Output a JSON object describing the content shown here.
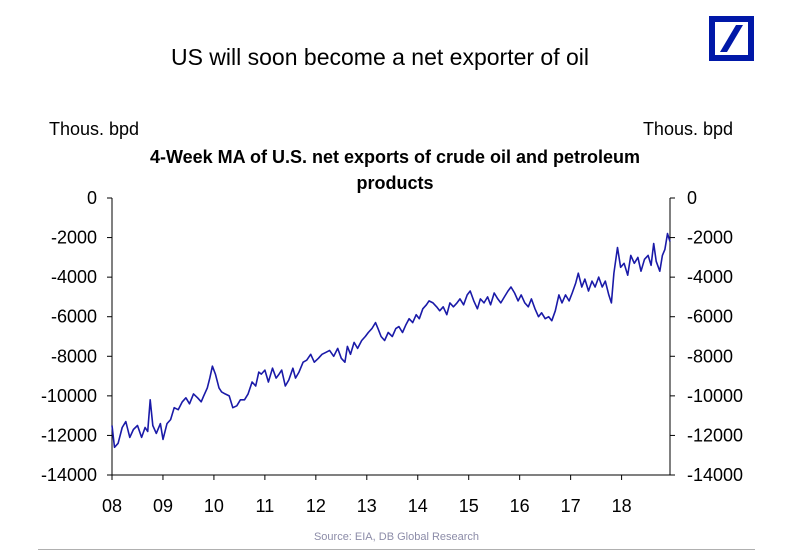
{
  "slide": {
    "title": "US will soon become a net exporter of oil",
    "source": "Source: EIA, DB Global Research"
  },
  "logo": {
    "name": "deutsche-bank-logo",
    "color": "#0018a8"
  },
  "chart_data": {
    "type": "line",
    "title": "4-Week MA of  U.S. net exports of crude oil and petroleum products",
    "title_line1": "4-Week MA of  U.S. net exports of crude oil and petroleum",
    "title_line2": "products",
    "ylabel_left": "Thous. bpd",
    "ylabel_right": "Thous. bpd",
    "ylim": [
      -14000,
      0
    ],
    "yticks": [
      0,
      -2000,
      -4000,
      -6000,
      -8000,
      -10000,
      -12000,
      -14000
    ],
    "x_range": [
      2008,
      2018.95
    ],
    "xticks": [
      {
        "label": "08",
        "value": 2008
      },
      {
        "label": "09",
        "value": 2009
      },
      {
        "label": "10",
        "value": 2010
      },
      {
        "label": "11",
        "value": 2011
      },
      {
        "label": "12",
        "value": 2012
      },
      {
        "label": "13",
        "value": 2013
      },
      {
        "label": "14",
        "value": 2014
      },
      {
        "label": "15",
        "value": 2015
      },
      {
        "label": "16",
        "value": 2016
      },
      {
        "label": "17",
        "value": 2017
      },
      {
        "label": "18",
        "value": 2018
      }
    ],
    "line_color": "#1a1aa8",
    "series": [
      {
        "name": "4-Week MA of U.S. net exports",
        "points": [
          [
            2008.0,
            -11500
          ],
          [
            2008.05,
            -12600
          ],
          [
            2008.12,
            -12400
          ],
          [
            2008.2,
            -11600
          ],
          [
            2008.27,
            -11300
          ],
          [
            2008.35,
            -12100
          ],
          [
            2008.42,
            -11700
          ],
          [
            2008.5,
            -11500
          ],
          [
            2008.58,
            -12100
          ],
          [
            2008.65,
            -11600
          ],
          [
            2008.7,
            -11800
          ],
          [
            2008.75,
            -10200
          ],
          [
            2008.8,
            -11500
          ],
          [
            2008.87,
            -11900
          ],
          [
            2008.95,
            -11400
          ],
          [
            2009.0,
            -12200
          ],
          [
            2009.08,
            -11400
          ],
          [
            2009.15,
            -11200
          ],
          [
            2009.22,
            -10600
          ],
          [
            2009.3,
            -10700
          ],
          [
            2009.38,
            -10300
          ],
          [
            2009.45,
            -10100
          ],
          [
            2009.52,
            -10400
          ],
          [
            2009.6,
            -9900
          ],
          [
            2009.68,
            -10100
          ],
          [
            2009.75,
            -10300
          ],
          [
            2009.8,
            -10000
          ],
          [
            2009.87,
            -9600
          ],
          [
            2009.92,
            -9100
          ],
          [
            2009.97,
            -8500
          ],
          [
            2010.03,
            -8900
          ],
          [
            2010.1,
            -9600
          ],
          [
            2010.15,
            -9800
          ],
          [
            2010.22,
            -9900
          ],
          [
            2010.3,
            -10000
          ],
          [
            2010.37,
            -10600
          ],
          [
            2010.45,
            -10500
          ],
          [
            2010.52,
            -10200
          ],
          [
            2010.6,
            -10200
          ],
          [
            2010.67,
            -9900
          ],
          [
            2010.75,
            -9300
          ],
          [
            2010.82,
            -9500
          ],
          [
            2010.88,
            -8800
          ],
          [
            2010.93,
            -8900
          ],
          [
            2011.0,
            -8700
          ],
          [
            2011.07,
            -9300
          ],
          [
            2011.15,
            -8600
          ],
          [
            2011.22,
            -9100
          ],
          [
            2011.28,
            -8900
          ],
          [
            2011.33,
            -8700
          ],
          [
            2011.4,
            -9500
          ],
          [
            2011.47,
            -9200
          ],
          [
            2011.55,
            -8600
          ],
          [
            2011.6,
            -9100
          ],
          [
            2011.67,
            -8800
          ],
          [
            2011.75,
            -8300
          ],
          [
            2011.82,
            -8200
          ],
          [
            2011.9,
            -7900
          ],
          [
            2011.97,
            -8300
          ],
          [
            2012.05,
            -8100
          ],
          [
            2012.12,
            -7900
          ],
          [
            2012.2,
            -7800
          ],
          [
            2012.27,
            -7700
          ],
          [
            2012.35,
            -8000
          ],
          [
            2012.43,
            -7600
          ],
          [
            2012.5,
            -8100
          ],
          [
            2012.57,
            -8300
          ],
          [
            2012.62,
            -7500
          ],
          [
            2012.68,
            -7900
          ],
          [
            2012.75,
            -7300
          ],
          [
            2012.82,
            -7600
          ],
          [
            2012.9,
            -7200
          ],
          [
            2012.97,
            -7000
          ],
          [
            2013.03,
            -6800
          ],
          [
            2013.1,
            -6600
          ],
          [
            2013.17,
            -6300
          ],
          [
            2013.22,
            -6600
          ],
          [
            2013.28,
            -7000
          ],
          [
            2013.35,
            -7200
          ],
          [
            2013.42,
            -6800
          ],
          [
            2013.5,
            -7000
          ],
          [
            2013.57,
            -6600
          ],
          [
            2013.63,
            -6500
          ],
          [
            2013.7,
            -6800
          ],
          [
            2013.77,
            -6400
          ],
          [
            2013.83,
            -6100
          ],
          [
            2013.9,
            -6300
          ],
          [
            2013.97,
            -5900
          ],
          [
            2014.03,
            -6100
          ],
          [
            2014.1,
            -5600
          ],
          [
            2014.17,
            -5400
          ],
          [
            2014.22,
            -5200
          ],
          [
            2014.3,
            -5300
          ],
          [
            2014.37,
            -5500
          ],
          [
            2014.43,
            -5700
          ],
          [
            2014.5,
            -5500
          ],
          [
            2014.57,
            -5900
          ],
          [
            2014.63,
            -5300
          ],
          [
            2014.7,
            -5500
          ],
          [
            2014.77,
            -5300
          ],
          [
            2014.83,
            -5100
          ],
          [
            2014.9,
            -5400
          ],
          [
            2014.97,
            -4900
          ],
          [
            2015.03,
            -4700
          ],
          [
            2015.1,
            -5200
          ],
          [
            2015.17,
            -5600
          ],
          [
            2015.23,
            -5100
          ],
          [
            2015.3,
            -5300
          ],
          [
            2015.37,
            -5000
          ],
          [
            2015.43,
            -5400
          ],
          [
            2015.5,
            -4800
          ],
          [
            2015.57,
            -5100
          ],
          [
            2015.63,
            -5300
          ],
          [
            2015.7,
            -5000
          ],
          [
            2015.77,
            -4700
          ],
          [
            2015.83,
            -4500
          ],
          [
            2015.9,
            -4800
          ],
          [
            2015.97,
            -5200
          ],
          [
            2016.03,
            -4900
          ],
          [
            2016.1,
            -5300
          ],
          [
            2016.17,
            -5500
          ],
          [
            2016.23,
            -5100
          ],
          [
            2016.3,
            -5600
          ],
          [
            2016.37,
            -6000
          ],
          [
            2016.43,
            -5800
          ],
          [
            2016.5,
            -6100
          ],
          [
            2016.57,
            -6000
          ],
          [
            2016.63,
            -6200
          ],
          [
            2016.7,
            -5700
          ],
          [
            2016.77,
            -4900
          ],
          [
            2016.83,
            -5300
          ],
          [
            2016.9,
            -4900
          ],
          [
            2016.97,
            -5200
          ],
          [
            2017.03,
            -4800
          ],
          [
            2017.1,
            -4300
          ],
          [
            2017.15,
            -3800
          ],
          [
            2017.22,
            -4500
          ],
          [
            2017.28,
            -4100
          ],
          [
            2017.35,
            -4700
          ],
          [
            2017.42,
            -4200
          ],
          [
            2017.48,
            -4500
          ],
          [
            2017.55,
            -4000
          ],
          [
            2017.62,
            -4500
          ],
          [
            2017.68,
            -4200
          ],
          [
            2017.75,
            -4900
          ],
          [
            2017.8,
            -5300
          ],
          [
            2017.85,
            -3800
          ],
          [
            2017.92,
            -2500
          ],
          [
            2017.98,
            -3500
          ],
          [
            2018.05,
            -3300
          ],
          [
            2018.12,
            -3900
          ],
          [
            2018.18,
            -2900
          ],
          [
            2018.25,
            -3300
          ],
          [
            2018.32,
            -3000
          ],
          [
            2018.38,
            -3700
          ],
          [
            2018.45,
            -3100
          ],
          [
            2018.52,
            -2900
          ],
          [
            2018.58,
            -3400
          ],
          [
            2018.63,
            -2300
          ],
          [
            2018.68,
            -3200
          ],
          [
            2018.75,
            -3700
          ],
          [
            2018.8,
            -2900
          ],
          [
            2018.85,
            -2600
          ],
          [
            2018.9,
            -1800
          ],
          [
            2018.95,
            -2200
          ]
        ]
      }
    ]
  }
}
